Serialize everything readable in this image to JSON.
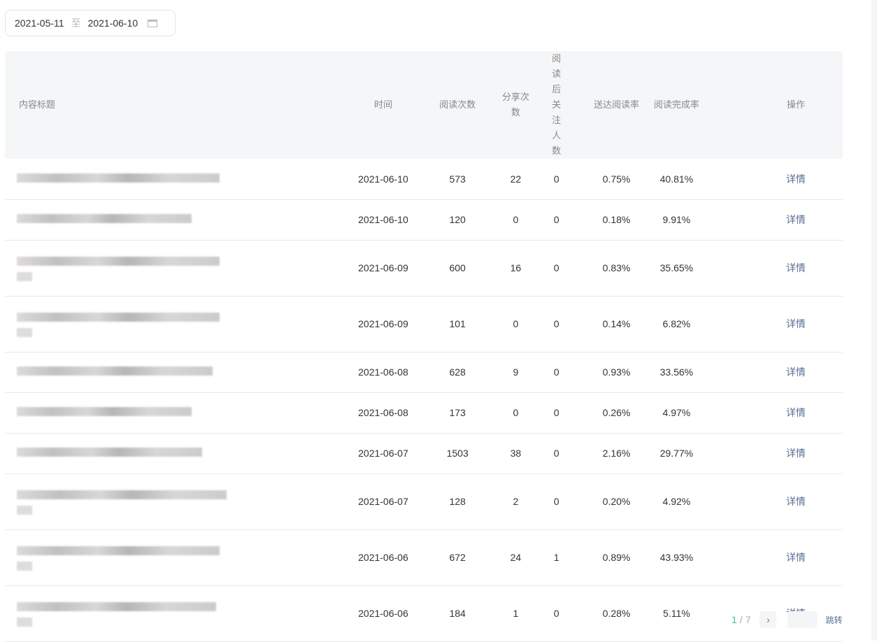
{
  "date_range": {
    "start": "2021-05-11",
    "separator": "至",
    "end": "2021-06-10"
  },
  "table": {
    "headers": [
      "内容标题",
      "时间",
      "阅读次数",
      "分享次数",
      "阅读后关注人数",
      "送达阅读率",
      "阅读完成率",
      "操作"
    ],
    "rows": [
      {
        "date": "2021-06-10",
        "reads": "573",
        "shares": "22",
        "follows": "0",
        "delivery_rate": "0.75%",
        "completion": "40.81%",
        "action": "详情",
        "two_line": false
      },
      {
        "date": "2021-06-10",
        "reads": "120",
        "shares": "0",
        "follows": "0",
        "delivery_rate": "0.18%",
        "completion": "9.91%",
        "action": "详情",
        "two_line": false
      },
      {
        "date": "2021-06-09",
        "reads": "600",
        "shares": "16",
        "follows": "0",
        "delivery_rate": "0.83%",
        "completion": "35.65%",
        "action": "详情",
        "two_line": true
      },
      {
        "date": "2021-06-09",
        "reads": "101",
        "shares": "0",
        "follows": "0",
        "delivery_rate": "0.14%",
        "completion": "6.82%",
        "action": "详情",
        "two_line": true
      },
      {
        "date": "2021-06-08",
        "reads": "628",
        "shares": "9",
        "follows": "0",
        "delivery_rate": "0.93%",
        "completion": "33.56%",
        "action": "详情",
        "two_line": false
      },
      {
        "date": "2021-06-08",
        "reads": "173",
        "shares": "0",
        "follows": "0",
        "delivery_rate": "0.26%",
        "completion": "4.97%",
        "action": "详情",
        "two_line": false
      },
      {
        "date": "2021-06-07",
        "reads": "1503",
        "shares": "38",
        "follows": "0",
        "delivery_rate": "2.16%",
        "completion": "29.77%",
        "action": "详情",
        "two_line": false
      },
      {
        "date": "2021-06-07",
        "reads": "128",
        "shares": "2",
        "follows": "0",
        "delivery_rate": "0.20%",
        "completion": "4.92%",
        "action": "详情",
        "two_line": true
      },
      {
        "date": "2021-06-06",
        "reads": "672",
        "shares": "24",
        "follows": "1",
        "delivery_rate": "0.89%",
        "completion": "43.93%",
        "action": "详情",
        "two_line": true
      },
      {
        "date": "2021-06-06",
        "reads": "184",
        "shares": "1",
        "follows": "0",
        "delivery_rate": "0.28%",
        "completion": "5.11%",
        "action": "详情",
        "two_line": true
      }
    ]
  },
  "pagination": {
    "current": "1",
    "separator": "/",
    "total": "7",
    "next_icon": "chevron-right-icon",
    "jump_label": "跳转"
  }
}
